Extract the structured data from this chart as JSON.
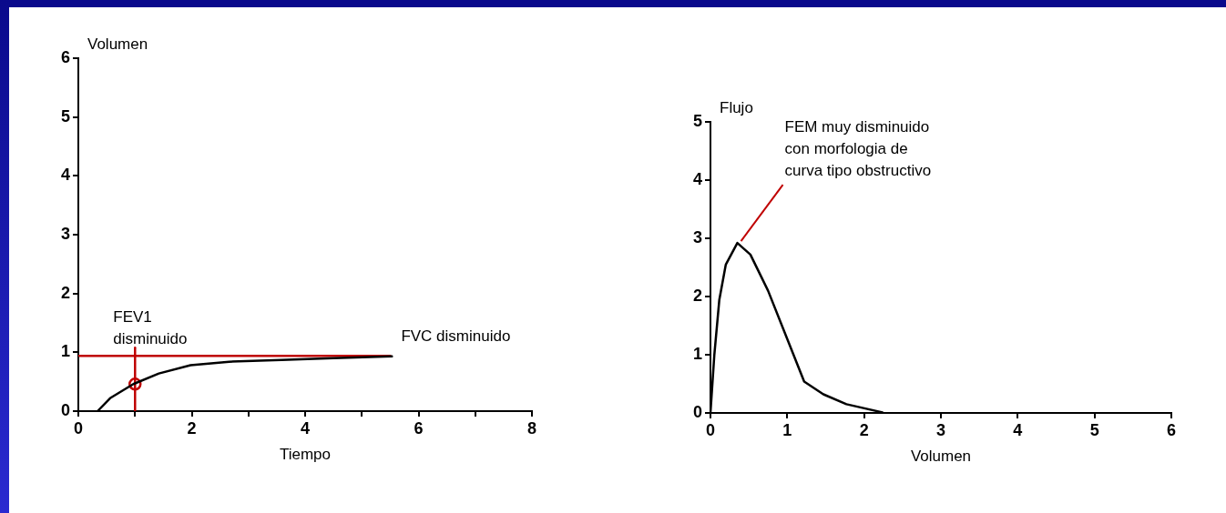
{
  "chart_data": [
    {
      "type": "line",
      "xlabel": "Tiempo",
      "ylabel": "Volumen",
      "xlim": [
        0,
        8
      ],
      "xticks": [
        0,
        {
          "value": 1,
          "label": null
        },
        2,
        {
          "value": 3,
          "label": null
        },
        4,
        {
          "value": 5,
          "label": null
        },
        6,
        {
          "value": 7,
          "label": null
        },
        8
      ],
      "ylim": [
        0,
        6
      ],
      "yticks": [
        0,
        1,
        2,
        3,
        4,
        5,
        6
      ],
      "grid": false,
      "legend": false,
      "marker": "none",
      "line_style": "solid",
      "series": [
        {
          "color": "#000000",
          "x": [
            0.34,
            0.56,
            0.97,
            1.42,
            1.98,
            2.66,
            3.58,
            4.5,
            5.53
          ],
          "values": [
            0,
            0.22,
            0.46,
            0.64,
            0.78,
            0.84,
            0.87,
            0.9,
            0.93
          ]
        },
        {
          "color": "#c00000",
          "x": [
            0,
            5.5
          ],
          "values": [
            0.94,
            0.94
          ]
        },
        {
          "color": "#c00000",
          "x": [
            1,
            1
          ],
          "values": [
            0,
            1.08
          ]
        },
        {
          "type": "scatter",
          "marker": "circle",
          "color": "#c00000",
          "x": [
            1
          ],
          "values": [
            0.46
          ]
        }
      ],
      "annotations": [
        {
          "text": "FEV1\ndisminuido",
          "x": 1,
          "y": 1.08
        },
        {
          "text": "FVC disminuido",
          "x": 5.5,
          "y": 0.94
        }
      ]
    },
    {
      "type": "line",
      "xlabel": "Volumen",
      "ylabel": "Flujo",
      "xlim": [
        0,
        6
      ],
      "xticks": [
        0,
        1,
        2,
        3,
        4,
        5,
        6
      ],
      "ylim": [
        0,
        5
      ],
      "yticks": [
        0,
        1,
        2,
        3,
        4,
        5
      ],
      "grid": false,
      "legend": false,
      "marker": "none",
      "line_style": "solid",
      "series": [
        {
          "color": "#000000",
          "x": [
            0,
            0.05,
            0.115,
            0.2,
            0.35,
            0.52,
            0.75,
            1.0,
            1.22,
            1.47,
            1.77,
            2.24
          ],
          "values": [
            0,
            0.99,
            1.94,
            2.55,
            2.92,
            2.72,
            2.1,
            1.27,
            0.54,
            0.32,
            0.15,
            0.01
          ]
        }
      ],
      "annotations": [
        {
          "text": "FEM muy disminuido\ncon morfologia de\ncurva tipo obstructivo",
          "x": 0.35,
          "y": 2.92
        }
      ]
    }
  ]
}
